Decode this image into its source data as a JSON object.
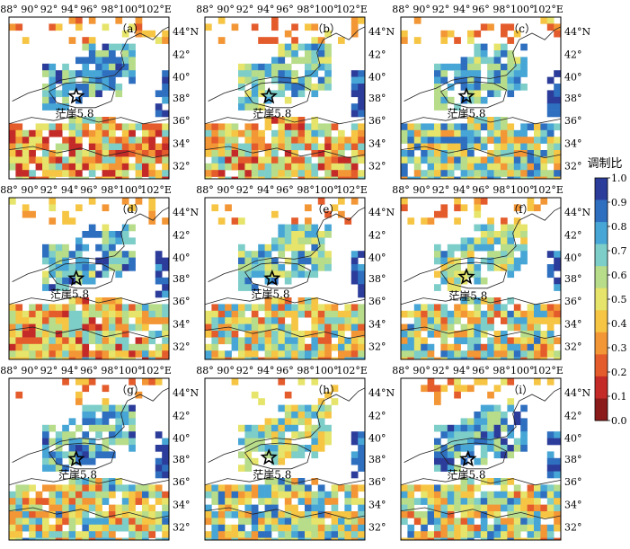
{
  "figure": {
    "x_ticks": [
      "88°",
      "90°",
      "92°",
      "94°",
      "96°",
      "98°",
      "100°",
      "102°E"
    ],
    "y_ticks": [
      "44°N",
      "42°",
      "40°",
      "38°",
      "36°",
      "34°",
      "32°"
    ],
    "marker_label": "茫崖5.8",
    "panels": [
      {
        "label": "（a）"
      },
      {
        "label": "（b）"
      },
      {
        "label": "（c）"
      },
      {
        "label": "（d）"
      },
      {
        "label": "（e）"
      },
      {
        "label": "（f）"
      },
      {
        "label": "（g）"
      },
      {
        "label": "（h）"
      },
      {
        "label": "（i）"
      }
    ],
    "colorbar": {
      "title": "调制比",
      "ticks": [
        "1.0",
        "0.9",
        "0.8",
        "0.7",
        "0.6",
        "0.5",
        "0.4",
        "0.3",
        "0.2",
        "0.1",
        "0.0"
      ],
      "colors": [
        "#2c3c9a",
        "#2f6fc0",
        "#47a6d6",
        "#7dcdc9",
        "#b7dc8a",
        "#e6e46a",
        "#f6c544",
        "#f39635",
        "#e45c2c",
        "#c42a27",
        "#8b1a1a"
      ]
    }
  }
}
